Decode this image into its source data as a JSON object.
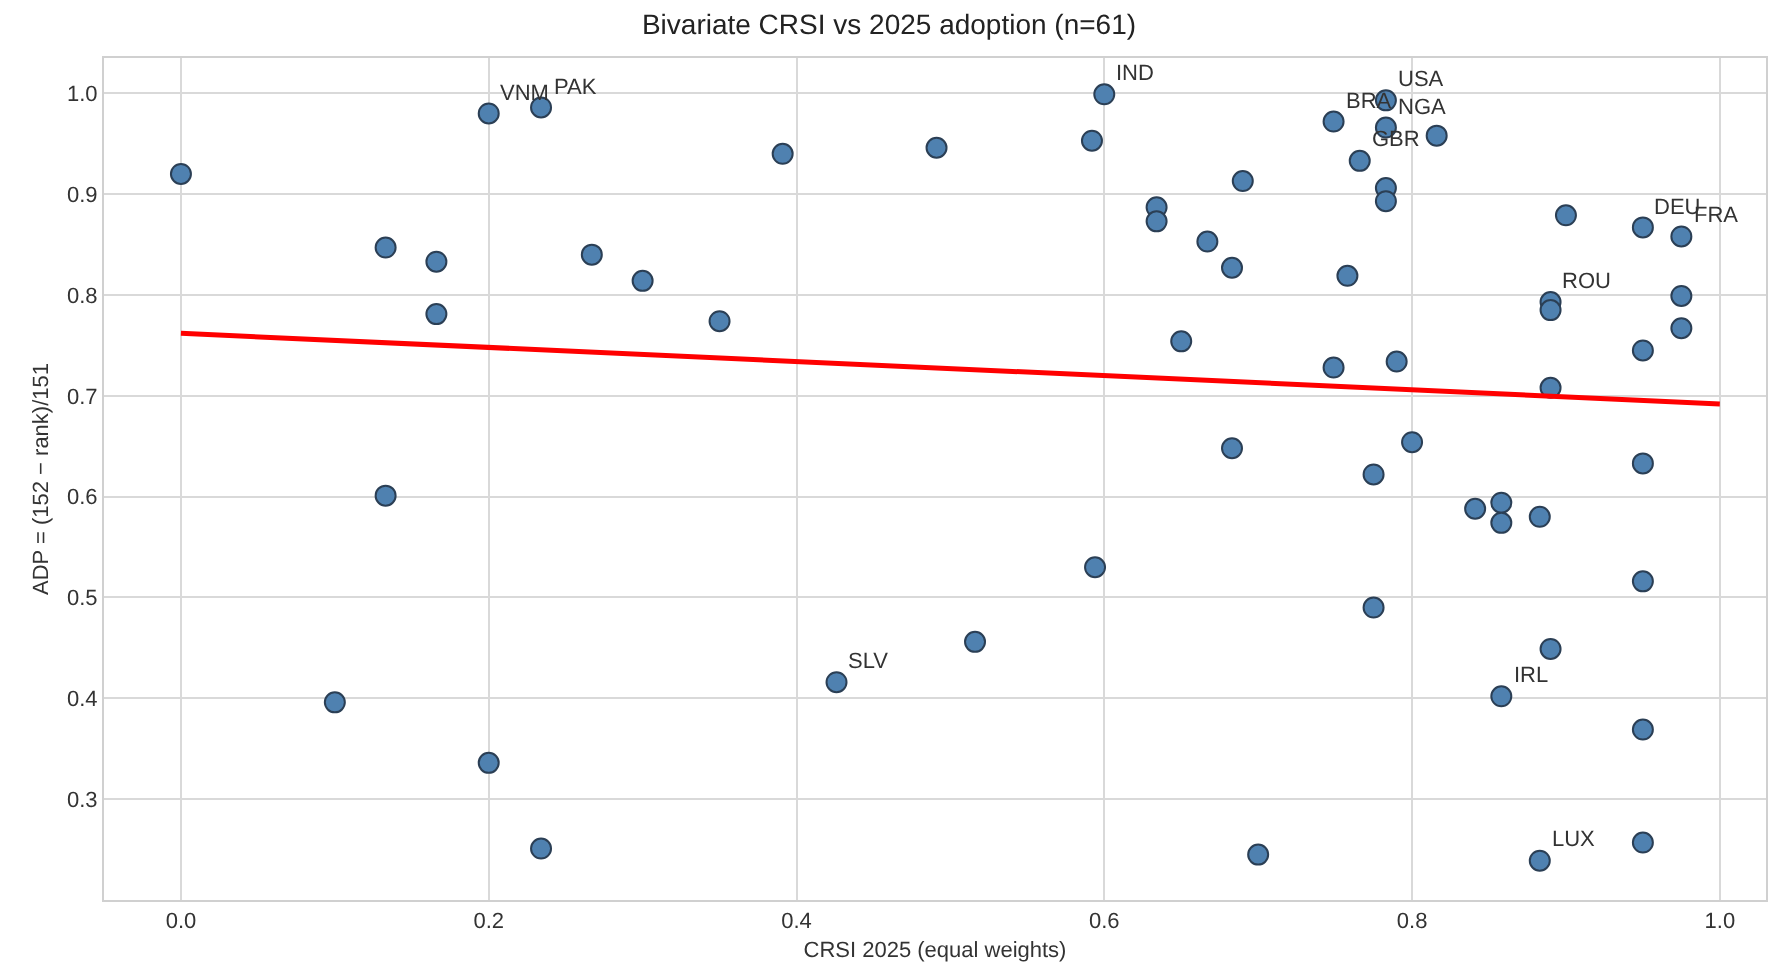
{
  "chart_data": {
    "type": "scatter",
    "title": "Bivariate CRSI vs 2025 adoption (n=61)",
    "xlabel": "CRSI 2025 (equal weights)",
    "ylabel": "ADP = (152 − rank)/151",
    "xlim": [
      -0.05,
      1.03
    ],
    "ylim": [
      0.2,
      1.035
    ],
    "xticks": [
      {
        "value": 0,
        "label": "0.0"
      },
      0.2,
      0.4,
      0.6,
      0.8,
      {
        "value": 1,
        "label": "1.0"
      }
    ],
    "yticks": [
      0.3,
      0.4,
      0.5,
      0.6,
      0.7,
      0.8,
      0.9,
      {
        "value": 1,
        "label": "1.0"
      }
    ],
    "grid": true,
    "marker": "circle",
    "series": [
      {
        "color": "#4f81b0",
        "x": [
          0,
          0.133,
          0.166,
          0.166,
          0.133,
          0.1,
          0.2,
          0.234,
          0.267,
          0.3,
          0.35,
          0.391,
          0.491,
          0.592,
          0.6,
          0.634,
          0.634,
          0.667,
          0.683,
          0.69,
          0.65,
          0.749,
          0.783,
          0.783,
          0.816,
          0.766,
          0.783,
          0.783,
          0.758,
          0.9,
          0.95,
          0.975,
          0.89,
          0.89,
          0.975,
          0.975,
          0.95,
          0.749,
          0.79,
          0.89,
          0.8,
          0.683,
          0.775,
          0.95,
          0.841,
          0.858,
          0.858,
          0.883,
          0.775,
          0.594,
          0.95,
          0.516,
          0.89,
          0.426,
          0.858,
          0.95,
          0.2,
          0.234,
          0.7,
          0.883,
          0.95
        ],
        "values": [
          0.92,
          0.847,
          0.833,
          0.781,
          0.601,
          0.396,
          0.98,
          0.986,
          0.84,
          0.814,
          0.774,
          0.94,
          0.946,
          0.953,
          0.999,
          0.887,
          0.873,
          0.853,
          0.827,
          0.913,
          0.754,
          0.972,
          0.993,
          0.966,
          0.958,
          0.933,
          0.906,
          0.893,
          0.819,
          0.879,
          0.867,
          0.858,
          0.793,
          0.785,
          0.799,
          0.767,
          0.745,
          0.728,
          0.734,
          0.708,
          0.654,
          0.648,
          0.622,
          0.633,
          0.588,
          0.594,
          0.574,
          0.58,
          0.49,
          0.53,
          0.516,
          0.456,
          0.449,
          0.416,
          0.402,
          0.369,
          0.336,
          0.251,
          0.245,
          0.239,
          0.257
        ]
      },
      {
        "type": "line",
        "color": "#ff0000",
        "x": [
          0,
          1
        ],
        "values": [
          0.762,
          0.692
        ],
        "line_style": "solid",
        "marker": "none"
      }
    ],
    "annotations": [
      {
        "text": "VNM",
        "x": 0.2,
        "y": 0.98
      },
      {
        "text": "PAK",
        "x": 0.234,
        "y": 0.986
      },
      {
        "text": "IND",
        "x": 0.6,
        "y": 0.999
      },
      {
        "text": "BRA",
        "x": 0.749,
        "y": 0.972
      },
      {
        "text": "USA",
        "x": 0.783,
        "y": 0.993
      },
      {
        "text": "NGA",
        "x": 0.783,
        "y": 0.966
      },
      {
        "text": "GBR",
        "x": 0.766,
        "y": 0.933
      },
      {
        "text": "DEU",
        "x": 0.95,
        "y": 0.867
      },
      {
        "text": "FRA",
        "x": 0.975,
        "y": 0.858
      },
      {
        "text": "ROU",
        "x": 0.89,
        "y": 0.793
      },
      {
        "text": "SLV",
        "x": 0.426,
        "y": 0.416
      },
      {
        "text": "IRL",
        "x": 0.858,
        "y": 0.402
      },
      {
        "text": "LUX",
        "x": 0.883,
        "y": 0.239
      }
    ]
  }
}
